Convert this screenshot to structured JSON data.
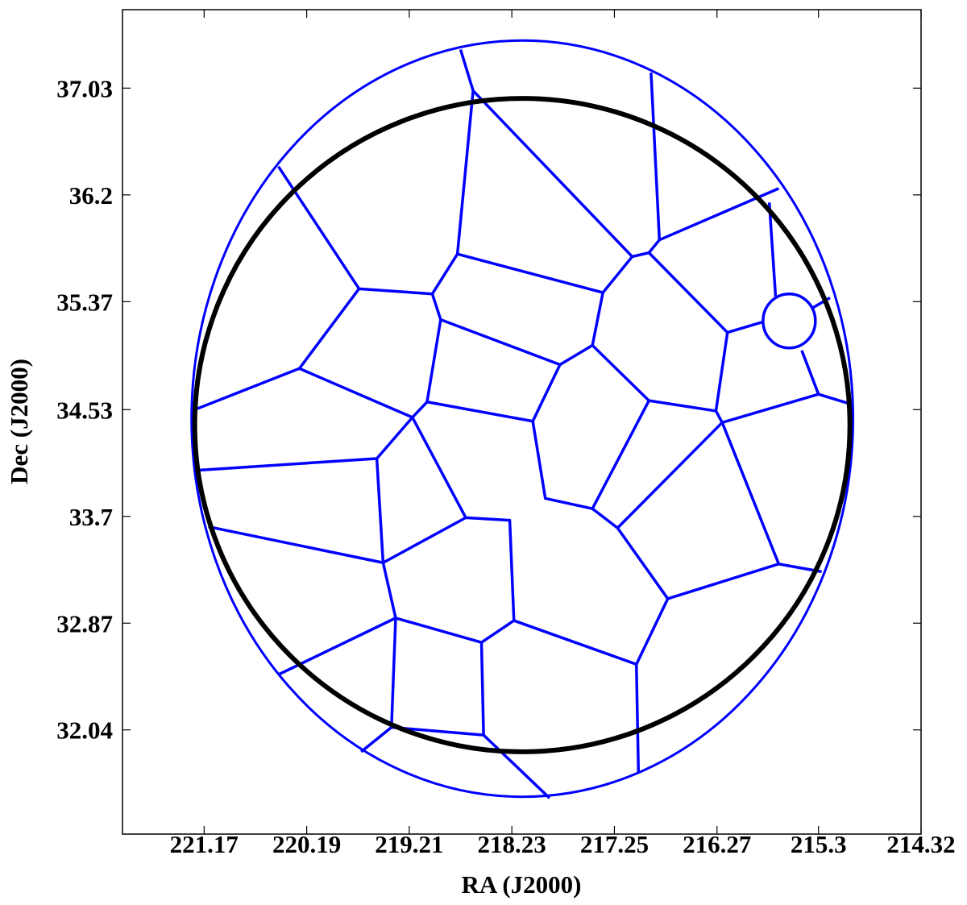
{
  "chart_data": {
    "type": "voronoi",
    "xlabel": "RA (J2000)",
    "ylabel": "Dec (J2000)",
    "xlim": [
      221.95,
      214.32
    ],
    "ylim": [
      31.23,
      37.64
    ],
    "xticks": [
      221.17,
      220.19,
      219.21,
      218.23,
      217.25,
      216.27,
      215.3,
      214.32
    ],
    "yticks": [
      32.04,
      32.87,
      33.7,
      34.53,
      35.37,
      36.2,
      37.03
    ],
    "edges": {
      "color": "#0000ff",
      "linewidth": 3.5,
      "lines": [
        {
          "ra": [
            218.72,
            218.6,
            217.08,
            216.92,
            216.82,
            216.9
          ],
          "dec": [
            37.33,
            37.01,
            35.72,
            35.75,
            35.85,
            37.15
          ]
        },
        {
          "ra": [
            216.82,
            215.68
          ],
          "dec": [
            35.85,
            36.25
          ]
        },
        {
          "ra": [
            218.6,
            218.75,
            218.99,
            219.69,
            220.46
          ],
          "dec": [
            37.01,
            35.74,
            35.43,
            35.47,
            36.42
          ]
        },
        {
          "ra": [
            219.69,
            220.26,
            221.26
          ],
          "dec": [
            35.47,
            34.85,
            34.53
          ]
        },
        {
          "ra": [
            220.26,
            219.18,
            219.52,
            221.21
          ],
          "dec": [
            34.85,
            34.47,
            34.15,
            34.06
          ]
        },
        {
          "ra": [
            218.75,
            217.36,
            217.46,
            217.77,
            218.91,
            218.99
          ],
          "dec": [
            35.74,
            35.44,
            35.03,
            34.88,
            35.23,
            35.43
          ]
        },
        {
          "ra": [
            218.91,
            219.04,
            219.18
          ],
          "dec": [
            35.23,
            34.59,
            34.47
          ]
        },
        {
          "ra": [
            219.04,
            218.03,
            217.91,
            217.46,
            217.22,
            216.74,
            217.04,
            218.21,
            218.25,
            218.67,
            219.18
          ],
          "dec": [
            34.59,
            34.44,
            33.84,
            33.76,
            33.61,
            33.06,
            32.55,
            32.89,
            33.67,
            33.69,
            34.47
          ]
        },
        {
          "ra": [
            218.03,
            217.77
          ],
          "dec": [
            34.44,
            34.88
          ]
        },
        {
          "ra": [
            219.52,
            219.46,
            221.13
          ],
          "dec": [
            34.15,
            33.34,
            33.62
          ]
        },
        {
          "ra": [
            218.67,
            219.46,
            219.34,
            220.46
          ],
          "dec": [
            33.69,
            33.34,
            32.91,
            32.47
          ]
        },
        {
          "ra": [
            219.34,
            219.38,
            219.67
          ],
          "dec": [
            32.91,
            32.06,
            31.87
          ]
        },
        {
          "ra": [
            219.34,
            218.52,
            218.21
          ],
          "dec": [
            32.91,
            32.72,
            32.89
          ]
        },
        {
          "ra": [
            218.52,
            218.5,
            217.87
          ],
          "dec": [
            32.72,
            32.0,
            31.51
          ]
        },
        {
          "ra": [
            219.38,
            218.5
          ],
          "dec": [
            32.06,
            32.0
          ]
        },
        {
          "ra": [
            217.04,
            217.02
          ],
          "dec": [
            32.55,
            31.7
          ]
        },
        {
          "ra": [
            217.36,
            217.08
          ],
          "dec": [
            35.44,
            35.72
          ]
        },
        {
          "ra": [
            216.92,
            216.17,
            215.84
          ],
          "dec": [
            35.75,
            35.13,
            35.21
          ]
        },
        {
          "ra": [
            216.17,
            216.28,
            216.22,
            217.22
          ],
          "dec": [
            35.13,
            34.52,
            34.43,
            33.61
          ]
        },
        {
          "ra": [
            217.46,
            216.92,
            217.46
          ],
          "dec": [
            35.03,
            34.6,
            33.76
          ]
        },
        {
          "ra": [
            216.92,
            216.28
          ],
          "dec": [
            34.6,
            34.52
          ]
        },
        {
          "ra": [
            216.22,
            215.3,
            215.02
          ],
          "dec": [
            34.43,
            34.65,
            34.58
          ]
        },
        {
          "ra": [
            215.46,
            215.3
          ],
          "dec": [
            34.99,
            34.65
          ]
        },
        {
          "ra": [
            216.22,
            215.68,
            215.27
          ],
          "dec": [
            34.43,
            33.33,
            33.27
          ]
        },
        {
          "ra": [
            215.68,
            216.74
          ],
          "dec": [
            33.33,
            33.06
          ]
        },
        {
          "ra": [
            215.77,
            215.71
          ],
          "dec": [
            36.14,
            35.41
          ]
        },
        {
          "ra": [
            215.19,
            215.36
          ],
          "dec": [
            35.4,
            35.32
          ]
        }
      ]
    },
    "ellipses": [
      {
        "ra": 218.13,
        "dec": 34.46,
        "r_ra": 3.16,
        "r_dec": 2.94,
        "color": "#0000ff",
        "linewidth": 3
      },
      {
        "ra": 215.58,
        "dec": 35.22,
        "r_ra": 0.25,
        "r_dec": 0.21,
        "color": "#0000ff",
        "linewidth": 3.5
      },
      {
        "ra": 218.13,
        "dec": 34.41,
        "r_ra": 3.13,
        "r_dec": 2.54,
        "color": "#000000",
        "linewidth": 6
      }
    ]
  }
}
